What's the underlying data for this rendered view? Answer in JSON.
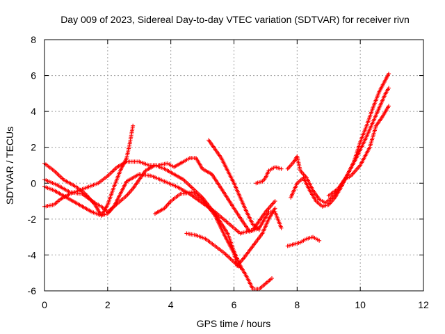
{
  "chart_data": {
    "type": "scatter",
    "title": "Day 009 of 2023, Sidereal Day-to-day VTEC variation (SDTVAR) for receiver rivn",
    "xlabel": "GPS time / hours",
    "ylabel": "SDTVAR / TECUs",
    "xlim": [
      0,
      12
    ],
    "ylim": [
      -6,
      8
    ],
    "xticks": [
      0,
      2,
      4,
      6,
      8,
      10,
      12
    ],
    "yticks": [
      -6,
      -4,
      -2,
      0,
      2,
      4,
      6,
      8
    ],
    "grid": true,
    "legend": "none",
    "marker": "plus",
    "color": "#ff0000",
    "series": [
      {
        "points": [
          [
            0.0,
            1.1
          ],
          [
            0.3,
            0.7
          ],
          [
            0.6,
            0.2
          ],
          [
            1.0,
            -0.2
          ],
          [
            1.3,
            -0.6
          ],
          [
            1.6,
            -1.2
          ],
          [
            1.8,
            -1.8
          ],
          [
            2.0,
            -1.7
          ],
          [
            2.2,
            -1.3
          ],
          [
            2.4,
            -0.6
          ],
          [
            2.6,
            0.1
          ],
          [
            3.0,
            0.5
          ],
          [
            3.4,
            0.4
          ],
          [
            3.8,
            0.1
          ],
          [
            4.2,
            -0.2
          ],
          [
            4.6,
            -0.6
          ],
          [
            5.0,
            -1.1
          ],
          [
            5.4,
            -1.6
          ],
          [
            5.8,
            -2.2
          ],
          [
            6.2,
            -2.8
          ],
          [
            6.6,
            -2.6
          ],
          [
            7.0,
            -1.6
          ],
          [
            7.3,
            -1.0
          ]
        ]
      },
      {
        "points": [
          [
            0.0,
            -0.2
          ],
          [
            0.3,
            -0.4
          ],
          [
            0.6,
            -0.7
          ],
          [
            0.9,
            -1.0
          ],
          [
            1.2,
            -1.3
          ],
          [
            1.5,
            -1.6
          ],
          [
            1.8,
            -1.8
          ],
          [
            2.0,
            -1.2
          ],
          [
            2.2,
            -0.2
          ],
          [
            2.4,
            0.7
          ],
          [
            2.6,
            1.4
          ],
          [
            2.7,
            2.2
          ],
          [
            2.8,
            3.2
          ]
        ]
      },
      {
        "points": [
          [
            0.0,
            -1.3
          ],
          [
            0.3,
            -1.2
          ],
          [
            0.5,
            -0.9
          ],
          [
            0.8,
            -0.6
          ],
          [
            1.1,
            -0.4
          ],
          [
            1.4,
            -0.2
          ],
          [
            1.7,
            0.0
          ],
          [
            2.0,
            0.4
          ],
          [
            2.3,
            0.9
          ],
          [
            2.6,
            1.2
          ],
          [
            3.0,
            1.2
          ],
          [
            3.3,
            1.0
          ],
          [
            3.6,
            1.0
          ],
          [
            3.9,
            1.1
          ],
          [
            4.1,
            0.9
          ],
          [
            4.4,
            1.2
          ],
          [
            4.6,
            1.4
          ],
          [
            4.8,
            1.4
          ],
          [
            5.0,
            0.8
          ],
          [
            5.3,
            0.5
          ],
          [
            5.6,
            -0.3
          ],
          [
            6.0,
            -1.4
          ],
          [
            6.3,
            -2.2
          ],
          [
            6.5,
            -2.7
          ],
          [
            6.8,
            -2.5
          ],
          [
            7.1,
            -1.6
          ],
          [
            7.3,
            -1.6
          ],
          [
            7.5,
            -2.5
          ]
        ]
      },
      {
        "points": [
          [
            0.0,
            0.2
          ],
          [
            0.4,
            -0.1
          ],
          [
            0.8,
            -0.5
          ],
          [
            1.2,
            -0.6
          ],
          [
            1.6,
            -1.1
          ],
          [
            1.8,
            -1.3
          ],
          [
            2.0,
            -1.6
          ],
          [
            2.2,
            -1.3
          ],
          [
            2.4,
            -1.0
          ],
          [
            2.6,
            -0.7
          ],
          [
            2.8,
            -0.3
          ],
          [
            3.0,
            0.2
          ],
          [
            3.2,
            0.7
          ],
          [
            3.5,
            1.0
          ],
          [
            3.8,
            0.8
          ],
          [
            4.1,
            0.5
          ],
          [
            4.4,
            0.2
          ],
          [
            4.7,
            -0.3
          ],
          [
            5.0,
            -0.8
          ],
          [
            5.4,
            -1.7
          ],
          [
            5.8,
            -2.8
          ],
          [
            6.0,
            -3.8
          ],
          [
            6.2,
            -4.6
          ],
          [
            6.4,
            -5.2
          ],
          [
            6.6,
            -5.9
          ],
          [
            6.8,
            -5.9
          ],
          [
            7.0,
            -5.6
          ],
          [
            7.2,
            -5.3
          ]
        ]
      },
      {
        "points": [
          [
            3.5,
            -1.7
          ],
          [
            3.8,
            -1.4
          ],
          [
            4.0,
            -1.0
          ],
          [
            4.3,
            -0.6
          ],
          [
            4.7,
            -0.5
          ],
          [
            5.0,
            -0.9
          ],
          [
            5.4,
            -1.8
          ],
          [
            5.7,
            -2.9
          ],
          [
            6.0,
            -3.9
          ],
          [
            6.1,
            -4.6
          ],
          [
            6.3,
            -4.2
          ],
          [
            6.6,
            -3.5
          ],
          [
            6.9,
            -2.8
          ],
          [
            7.1,
            -2.0
          ],
          [
            7.3,
            -1.4
          ]
        ]
      },
      {
        "points": [
          [
            4.5,
            -2.8
          ],
          [
            4.8,
            -2.9
          ],
          [
            5.1,
            -3.1
          ],
          [
            5.4,
            -3.5
          ],
          [
            5.7,
            -3.9
          ],
          [
            6.0,
            -4.4
          ],
          [
            6.2,
            -4.7
          ]
        ]
      },
      {
        "points": [
          [
            5.2,
            2.4
          ],
          [
            5.4,
            1.9
          ],
          [
            5.6,
            1.4
          ],
          [
            5.8,
            0.7
          ],
          [
            6.0,
            0.0
          ],
          [
            6.2,
            -0.8
          ],
          [
            6.4,
            -1.6
          ],
          [
            6.6,
            -2.3
          ],
          [
            6.8,
            -2.6
          ]
        ]
      },
      {
        "points": [
          [
            6.7,
            0.0
          ],
          [
            6.9,
            0.1
          ],
          [
            7.0,
            0.3
          ],
          [
            7.1,
            0.7
          ],
          [
            7.3,
            0.9
          ],
          [
            7.5,
            0.8
          ]
        ]
      },
      {
        "points": [
          [
            7.7,
            0.8
          ],
          [
            7.9,
            1.2
          ],
          [
            8.0,
            1.5
          ],
          [
            8.1,
            0.7
          ],
          [
            8.3,
            0.3
          ],
          [
            8.5,
            -0.4
          ],
          [
            8.7,
            -0.9
          ],
          [
            8.9,
            -1.1
          ],
          [
            9.1,
            -0.8
          ],
          [
            9.3,
            -0.4
          ],
          [
            9.6,
            0.5
          ],
          [
            9.9,
            1.5
          ],
          [
            10.2,
            2.6
          ],
          [
            10.5,
            3.8
          ],
          [
            10.8,
            5.0
          ],
          [
            10.9,
            5.3
          ]
        ]
      },
      {
        "points": [
          [
            7.8,
            -0.8
          ],
          [
            8.0,
            0.0
          ],
          [
            8.2,
            0.3
          ],
          [
            8.4,
            -0.4
          ],
          [
            8.6,
            -1.0
          ],
          [
            8.8,
            -1.3
          ],
          [
            9.0,
            -1.2
          ],
          [
            9.2,
            -0.8
          ],
          [
            9.4,
            -0.2
          ],
          [
            9.6,
            0.5
          ],
          [
            9.8,
            1.2
          ],
          [
            10.0,
            2.3
          ],
          [
            10.2,
            3.2
          ],
          [
            10.4,
            4.2
          ],
          [
            10.6,
            5.1
          ],
          [
            10.9,
            6.1
          ]
        ]
      },
      {
        "points": [
          [
            9.0,
            -0.7
          ],
          [
            9.3,
            -0.3
          ],
          [
            9.5,
            0.2
          ],
          [
            9.7,
            0.4
          ],
          [
            10.0,
            1.0
          ],
          [
            10.3,
            2.0
          ],
          [
            10.5,
            3.2
          ],
          [
            10.7,
            3.7
          ],
          [
            10.9,
            4.3
          ]
        ]
      },
      {
        "points": [
          [
            7.7,
            -3.5
          ],
          [
            7.9,
            -3.4
          ],
          [
            8.1,
            -3.3
          ],
          [
            8.3,
            -3.1
          ],
          [
            8.5,
            -3.0
          ],
          [
            8.7,
            -3.2
          ]
        ]
      }
    ]
  }
}
